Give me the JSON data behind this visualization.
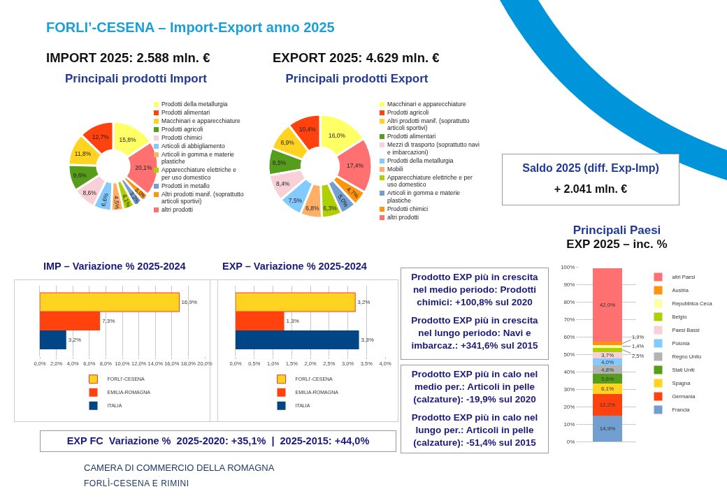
{
  "chart_data": [
    {
      "type": "other",
      "title": "FORLI’-CESENA – Import-Export anno 2025",
      "annotations": [
        "IMPORT 2025: 2.588 mln. €",
        "EXPORT 2025: 4.629 mln. €",
        "Saldo 2025 (diff. Exp-Imp)",
        "+ 2.041 mln. €",
        "Prodotto EXP più in crescita nel medio periodo: Prodotti chimici: +100,8% sul 2020",
        "Prodotto EXP più in crescita nel lungo periodo: Navi e imbarcaz.: +341,6% sul 2015",
        "Prodotto EXP più in calo nel medio per.: Articoli in pelle (calzature): -19,9% sul 2020",
        "Prodotto EXP più in calo nel lungo per.: Articoli in pelle (calzature): -51,4% sul 2015",
        "EXP FC  Variazione %  2025-2020: +35,1%  |  2025-2015: +44,0%",
        "CAMERA DI COMMERCIO DELLA ROMAGNA",
        "FORLÌ-CESENA E RIMINI"
      ]
    },
    {
      "type": "donut",
      "title": "Principali prodotti Import",
      "legend": "right",
      "categories": [
        "Prodotti della metallurgia",
        "Prodotti alimentari",
        "Macchinari e apparecchiature",
        "Prodotti agricoli",
        "Prodotti chimici",
        "Articoli di abbigliamento",
        "Articoli in gomma e materie plastiche",
        "Apparecchiature elettriche e per uso domestico",
        "Prodotti in metallo",
        "Altri prodotti manif. (soprattutto articoli sportivi)",
        "altri prodotti"
      ],
      "values": [
        15.8,
        12.7,
        11.8,
        9.6,
        8.6,
        6.6,
        4.5,
        4.1,
        3.2,
        3.0,
        20.1
      ],
      "value_labels": [
        "15,8%",
        "12,7%",
        "11,8%",
        "9,6%",
        "8,6%",
        "6,6%",
        "4,5%",
        "4,1%",
        "3,2%",
        "3,0%",
        "20,1%"
      ],
      "colors": [
        "#ffff66",
        "#ff420e",
        "#ffd320",
        "#579d1c",
        "#f8d0d8",
        "#83caff",
        "#ffb066",
        "#aecf00",
        "#729fcf",
        "#ff950e",
        "#ff7070"
      ]
    },
    {
      "type": "donut",
      "title": "Principali prodotti Export",
      "legend": "right",
      "categories": [
        "Macchinari e apparecchiature",
        "Prodotti agricoli",
        "Altri prodotti manif. (soprattutto articoli sportivi)",
        "Prodotti alimentari",
        "Mezzi di trasporto (soprattutto navi e imbarcazioni)",
        "Prodotti della metallurgia",
        "Mobili",
        "Apparecchiature elettriche e per uso domestico",
        "Articoli in gomma e materie plastiche",
        "Prodotti chimici",
        "altri prodotti"
      ],
      "values": [
        16.0,
        10.4,
        8.9,
        8.5,
        8.4,
        7.5,
        6.8,
        6.3,
        5.0,
        4.7,
        17.4
      ],
      "value_labels": [
        "16,0%",
        "10,4%",
        "8,9%",
        "8,5%",
        "8,4%",
        "7,5%",
        "6,8%",
        "6,3%",
        "5,0%",
        "4,7%",
        "17,4%"
      ],
      "colors": [
        "#ffff66",
        "#ff420e",
        "#ffd320",
        "#579d1c",
        "#f8d0d8",
        "#83caff",
        "#ffb066",
        "#aecf00",
        "#729fcf",
        "#ff950e",
        "#ff7070"
      ]
    },
    {
      "type": "bar",
      "orientation": "horizontal",
      "title": "IMP – Variazione % 2025-2024",
      "categories": [
        null
      ],
      "grid": "x",
      "legend": "bottom",
      "xlim": [
        0,
        20
      ],
      "xticks": [
        {
          "value": 0,
          "label": "0,0%"
        },
        {
          "value": 2,
          "label": "2,0%"
        },
        {
          "value": 4,
          "label": "4,0%"
        },
        {
          "value": 6,
          "label": "6,0%"
        },
        {
          "value": 8,
          "label": "8,0%"
        },
        {
          "value": 10,
          "label": "10,0%"
        },
        {
          "value": 12,
          "label": "12,0%"
        },
        {
          "value": 14,
          "label": "14,0%"
        },
        {
          "value": 16,
          "label": "16,0%"
        },
        {
          "value": 18,
          "label": "18,0%"
        },
        {
          "value": 20,
          "label": "20,0%"
        }
      ],
      "series": [
        {
          "name": "FORLI’-CESENA",
          "color": "#ffd320",
          "values": [
            16.9
          ],
          "value_labels": [
            "16,9%"
          ]
        },
        {
          "name": "EMILIA-ROMAGNA",
          "color": "#ff420e",
          "values": [
            7.3
          ],
          "value_labels": [
            "7,3%"
          ]
        },
        {
          "name": "ITALIA",
          "color": "#004586",
          "values": [
            3.2
          ],
          "value_labels": [
            "3,2%"
          ]
        }
      ]
    },
    {
      "type": "bar",
      "orientation": "horizontal",
      "title": "EXP – Variazione % 2025-2024",
      "categories": [
        null
      ],
      "grid": "x",
      "legend": "bottom",
      "xlim": [
        0,
        4
      ],
      "xticks": [
        {
          "value": 0,
          "label": "0,0%"
        },
        {
          "value": 0.5,
          "label": "0,5%"
        },
        {
          "value": 1,
          "label": "1,0%"
        },
        {
          "value": 1.5,
          "label": "1,5%"
        },
        {
          "value": 2,
          "label": "2,0%"
        },
        {
          "value": 2.5,
          "label": "2,5%"
        },
        {
          "value": 3,
          "label": "3,0%"
        },
        {
          "value": 3.5,
          "label": "3,5%"
        },
        {
          "value": 4,
          "label": "4,0%"
        }
      ],
      "series": [
        {
          "name": "FORLI’-CESENA",
          "color": "#ffd320",
          "values": [
            3.2
          ],
          "value_labels": [
            "3,2%"
          ]
        },
        {
          "name": "EMILIA-ROMAGNA",
          "color": "#ff420e",
          "values": [
            1.3
          ],
          "value_labels": [
            "1,3%"
          ]
        },
        {
          "name": "ITALIA",
          "color": "#004586",
          "values": [
            3.3
          ],
          "value_labels": [
            "3,3%"
          ]
        }
      ]
    },
    {
      "type": "bar",
      "stacked": true,
      "title": "Principali Paesi",
      "subtitle": "EXP 2025 –  inc. %",
      "categories": [
        null
      ],
      "grid": "y",
      "legend": "right",
      "ylim": [
        0,
        100
      ],
      "yticks": [
        {
          "value": 0,
          "label": "0%"
        },
        {
          "value": 10,
          "label": "10%"
        },
        {
          "value": 20,
          "label": "20%"
        },
        {
          "value": 30,
          "label": "30%"
        },
        {
          "value": 40,
          "label": "40%"
        },
        {
          "value": 50,
          "label": "50%"
        },
        {
          "value": 60,
          "label": "60%"
        },
        {
          "value": 70,
          "label": "70%"
        },
        {
          "value": 80,
          "label": "80%"
        },
        {
          "value": 90,
          "label": "90%"
        },
        {
          "value": 100,
          "label": "100%"
        }
      ],
      "series": [
        {
          "name": "Francia",
          "color": "#729fcf",
          "values": [
            14.9
          ],
          "value_labels": [
            "14,9%"
          ]
        },
        {
          "name": "Germania",
          "color": "#ff420e",
          "values": [
            12.2
          ],
          "value_labels": [
            "12,2%"
          ]
        },
        {
          "name": "Spagna",
          "color": "#ffd320",
          "values": [
            6.1
          ],
          "value_labels": [
            "6,1%"
          ]
        },
        {
          "name": "Stati Uniti",
          "color": "#579d1c",
          "values": [
            5.6
          ],
          "value_labels": [
            "5,6%"
          ]
        },
        {
          "name": "Regno Unito",
          "color": "#b3b3b3",
          "values": [
            4.8
          ],
          "value_labels": [
            "4,8%"
          ]
        },
        {
          "name": "Polonia",
          "color": "#83caff",
          "values": [
            4.0
          ],
          "value_labels": [
            "4,0%"
          ]
        },
        {
          "name": "Paesi Bassi",
          "color": "#f8d0d8",
          "values": [
            3.7
          ],
          "value_labels": [
            "3,7%"
          ]
        },
        {
          "name": "Belgio",
          "color": "#aecf00",
          "values": [
            2.5
          ],
          "value_labels": [
            "2,5%"
          ]
        },
        {
          "name": "Repubblica Ceca",
          "color": "#ffffa6",
          "values": [
            1.4
          ],
          "value_labels": [
            "1,4%"
          ]
        },
        {
          "name": "Austria",
          "color": "#ff950e",
          "values": [
            1.9
          ],
          "value_labels": [
            "1,9%"
          ]
        },
        {
          "name": "altri Paesi",
          "color": "#ff7070",
          "values": [
            42.0
          ],
          "value_labels": [
            "42,0%"
          ]
        }
      ]
    }
  ]
}
